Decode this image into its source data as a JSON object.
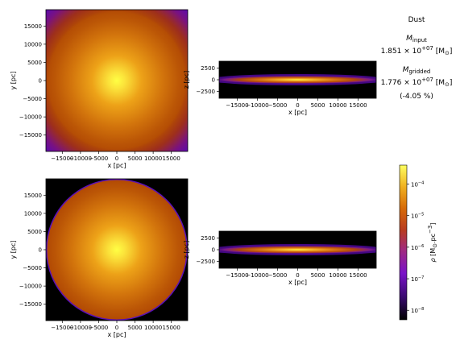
{
  "chart_data": [
    {
      "type": "heatmap",
      "panel": "face-on input density",
      "xlabel": "x [pc]",
      "ylabel": "y [pc]",
      "xlim": [
        -19500,
        19500
      ],
      "ylim": [
        -19500,
        19500
      ],
      "xticks": [
        "−15000",
        "−10000",
        "−5000",
        "0",
        "5000",
        "10000",
        "15000"
      ],
      "yticks": [
        "15000",
        "10000",
        "5000",
        "0",
        "−5000",
        "−10000",
        "−15000"
      ],
      "xtick_values": [
        -15000,
        -10000,
        -5000,
        0,
        5000,
        10000,
        15000
      ],
      "ytick_values": [
        15000,
        10000,
        5000,
        0,
        -5000,
        -10000,
        -15000
      ]
    },
    {
      "type": "heatmap",
      "panel": "edge-on input density",
      "xlabel": "x [pc]",
      "ylabel": "z [pc]",
      "xlim": [
        -19500,
        19500
      ],
      "ylim": [
        -4000,
        4000
      ],
      "xticks": [
        "−15000",
        "−10000",
        "−5000",
        "0",
        "5000",
        "10000",
        "15000"
      ],
      "yticks": [
        "2500",
        "0",
        "−2500"
      ],
      "xtick_values": [
        -15000,
        -10000,
        -5000,
        0,
        5000,
        10000,
        15000
      ],
      "ytick_values": [
        2500,
        0,
        -2500
      ]
    },
    {
      "type": "heatmap",
      "panel": "face-on gridded density",
      "xlabel": "x [pc]",
      "ylabel": "y [pc]",
      "xlim": [
        -19500,
        19500
      ],
      "ylim": [
        -19500,
        19500
      ],
      "xticks": [
        "−15000",
        "−10000",
        "−5000",
        "0",
        "5000",
        "10000",
        "15000"
      ],
      "yticks": [
        "15000",
        "10000",
        "5000",
        "0",
        "−5000",
        "−10000",
        "−15000"
      ],
      "xtick_values": [
        -15000,
        -10000,
        -5000,
        0,
        5000,
        10000,
        15000
      ],
      "ytick_values": [
        15000,
        10000,
        5000,
        0,
        -5000,
        -10000,
        -15000
      ]
    },
    {
      "type": "heatmap",
      "panel": "edge-on gridded density",
      "xlabel": "x [pc]",
      "ylabel": "z [pc]",
      "xlim": [
        -19500,
        19500
      ],
      "ylim": [
        -4000,
        4000
      ],
      "xticks": [
        "−15000",
        "−10000",
        "−5000",
        "0",
        "5000",
        "10000",
        "15000"
      ],
      "yticks": [
        "2500",
        "0",
        "−2500"
      ],
      "xtick_values": [
        -15000,
        -10000,
        -5000,
        0,
        5000,
        10000,
        15000
      ],
      "ytick_values": [
        2500,
        0,
        -2500
      ]
    }
  ],
  "summary": {
    "component": "Dust",
    "m_input_symbol": "M",
    "m_input_sub": "input",
    "m_input_value": "1.851 × 10",
    "m_input_exp": "+07",
    "m_input_unit": "[M",
    "m_input_unit_end": "]",
    "m_gridded_symbol": "M",
    "m_gridded_sub": "gridded",
    "m_gridded_value": "1.776 × 10",
    "m_gridded_exp": "+07",
    "m_gridded_unit": "[M",
    "m_gridded_unit_end": "]",
    "diff": "(-4.05 %)"
  },
  "colorbar": {
    "colormap": "gnuplot",
    "scale": "log",
    "label_rho": "ρ",
    "label_unit": "[M",
    "label_pc": "pc",
    "label_exp": "−3",
    "label_end": "]",
    "tick_base": "10",
    "tick_exps": [
      "−4",
      "−5",
      "−6",
      "−7",
      "−8"
    ],
    "tick_decades": [
      -4,
      -5,
      -6,
      -7,
      -8
    ],
    "range_log10": [
      -8.3,
      -3.4
    ]
  },
  "colors": {
    "center": "#ffff44",
    "mid": "#e89a00",
    "outer": "#b44800",
    "edge": "#9a2a20",
    "low": "#7a0fa0",
    "background": "#000000"
  }
}
